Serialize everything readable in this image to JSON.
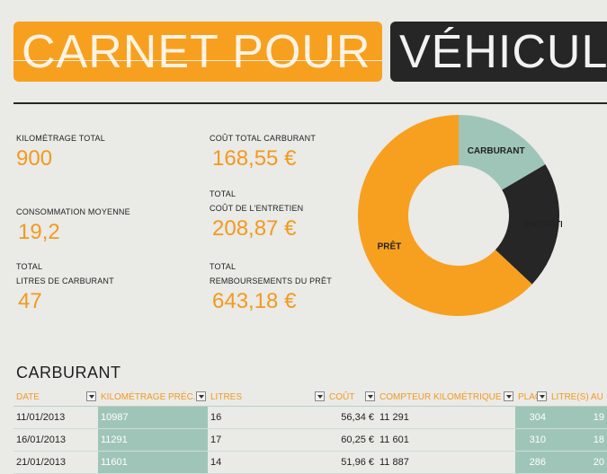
{
  "title": {
    "left": "CARNET POUR",
    "right": "VÉHICULE"
  },
  "kpis": {
    "kilometrage_total": {
      "label": "KILOMÉTRAGE TOTAL",
      "value": "900"
    },
    "consommation": {
      "label": "CONSOMMATION MOYENNE",
      "value": "19,2"
    },
    "litres": {
      "label1": "TOTAL",
      "label2": "LITRES DE CARBURANT",
      "value": "47"
    },
    "cout_carburant": {
      "label": "COÛT TOTAL CARBURANT",
      "value": "168,55 €"
    },
    "cout_entretien": {
      "label1": "TOTAL",
      "label2": "COÛT DE L'ENTRETIEN",
      "value": "208,87 €"
    },
    "remboursements": {
      "label1": "TOTAL",
      "label2": "REMBOURSEMENTS DU PRÊT",
      "value": "643,18 €"
    }
  },
  "chart_data": {
    "type": "pie",
    "donut": true,
    "categories": [
      "CARBURANT",
      "ENTRETIEN",
      "PRÊT"
    ],
    "values": [
      168.55,
      208.87,
      643.18
    ],
    "colors": [
      "#9fc5b9",
      "#262626",
      "#f7a020"
    ]
  },
  "fuel": {
    "section_title": "CARBURANT",
    "columns": [
      "DATE",
      "KILOMÉTRAGE PRÉC.",
      "LITRES",
      "COÛT",
      "COMPTEUR KILOMÉTRIQUE",
      "PLAGE",
      "LITRE(S) AU"
    ],
    "rows": [
      [
        "11/01/2013",
        "10987",
        "16",
        "56,34 €",
        "11 291",
        "304",
        "19"
      ],
      [
        "16/01/2013",
        "11291",
        "17",
        "60,25 €",
        "11 601",
        "310",
        "18"
      ],
      [
        "21/01/2013",
        "11601",
        "14",
        "51,96 €",
        "11 887",
        "286",
        "20"
      ]
    ]
  }
}
